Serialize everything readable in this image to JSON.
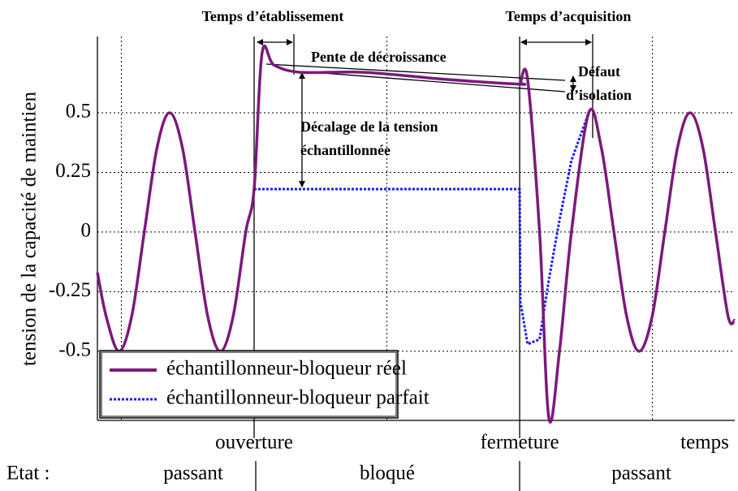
{
  "chart_data": {
    "type": "line",
    "ylabel": "tension de la capacité de maintien",
    "xlabel": "temps",
    "xlim": [
      -0.18,
      4.62
    ],
    "ylim": [
      -0.79,
      0.82
    ],
    "yticks": [
      {
        "value": 0.5,
        "label": "0.5"
      },
      {
        "value": 0.25,
        "label": "0.25"
      },
      0,
      {
        "value": -0.25,
        "label": "-0.25"
      },
      {
        "value": -0.5,
        "label": "-0.5"
      }
    ],
    "xticks": [
      {
        "value": 1,
        "label": "ouverture"
      },
      {
        "value": 3,
        "label": "fermeture"
      }
    ],
    "xgrid": [
      0,
      2,
      4
    ],
    "grid": true,
    "legend": "lower left",
    "x": [
      -0.18,
      -0.114,
      -0.018,
      0.078,
      0.173,
      0.269,
      0.364,
      0.46,
      0.555,
      0.651,
      0.746,
      0.842,
      0.937,
      1.0,
      1.06,
      1.15,
      1.35,
      1.83,
      2.45,
      3.0,
      3.005,
      3.06,
      3.15,
      3.22,
      3.3,
      3.39,
      3.52,
      3.615,
      3.71,
      3.806,
      3.9,
      3.998,
      4.093,
      4.189,
      4.284,
      4.38,
      4.475,
      4.57,
      4.62
    ],
    "series": [
      {
        "name": "échantillonneur-bloqueur réel",
        "color": "#7b1a7b",
        "style": "solid",
        "values": [
          -0.17,
          -0.354,
          -0.5,
          -0.354,
          0,
          0.354,
          0.5,
          0.354,
          0,
          -0.354,
          -0.5,
          -0.354,
          0,
          0.18,
          0.75,
          0.7,
          0.67,
          0.67,
          0.64,
          0.62,
          0.625,
          0.64,
          0,
          -0.78,
          -0.5,
          0,
          0.5,
          0.354,
          0,
          -0.354,
          -0.5,
          -0.354,
          0,
          0.354,
          0.5,
          0.354,
          0,
          -0.354,
          -0.37
        ]
      },
      {
        "name": "échantillonneur-bloqueur parfait",
        "color": "#1a1aff",
        "style": "dotted",
        "values": [
          null,
          null,
          null,
          null,
          null,
          null,
          null,
          null,
          null,
          null,
          null,
          null,
          null,
          0.18,
          0.18,
          0.18,
          0.18,
          0.18,
          0.18,
          0.18,
          -0.29,
          -0.47,
          -0.45,
          -0.2,
          0.05,
          0.3,
          0.5,
          null,
          null,
          null,
          null,
          null,
          null,
          null,
          null,
          null,
          null,
          null,
          null
        ]
      }
    ],
    "annotations": [
      "Temps d’établissement",
      "Temps d’acquisition",
      "Pente de décroissance",
      "Défaut",
      "d’isolation",
      "Décalage de la tension",
      "échantillonnée"
    ],
    "state_label": "Etat :",
    "states": [
      "passant",
      "bloqué",
      "passant"
    ]
  }
}
